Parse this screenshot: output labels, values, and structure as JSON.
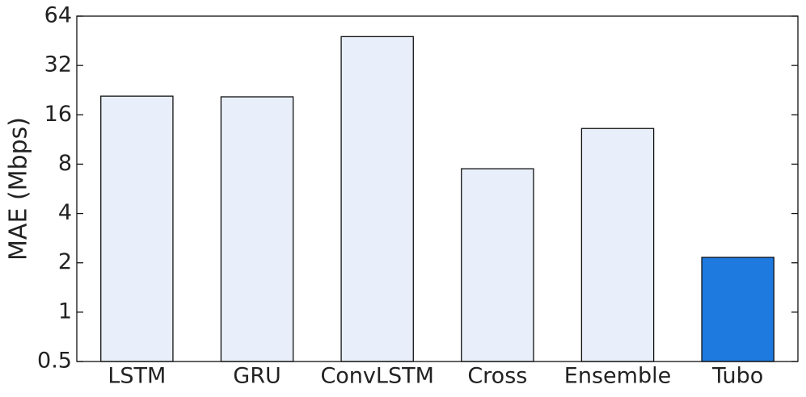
{
  "chart_data": {
    "type": "bar",
    "y_label": "MAE (Mbps)",
    "categories": [
      "LSTM",
      "GRU",
      "ConvLSTM",
      "Cross",
      "Ensemble",
      "Tubo"
    ],
    "values": [
      20.8,
      20.6,
      48,
      7.5,
      13.2,
      2.16
    ],
    "colors": [
      "#e8effa",
      "#e8effa",
      "#e8effa",
      "#e8effa",
      "#e8effa",
      "#1f7ae0"
    ],
    "log_scale": true,
    "ylim": [
      0.5,
      64
    ],
    "yticks": [
      0.5,
      1,
      2,
      4,
      8,
      16,
      32,
      64
    ],
    "grid": false
  }
}
